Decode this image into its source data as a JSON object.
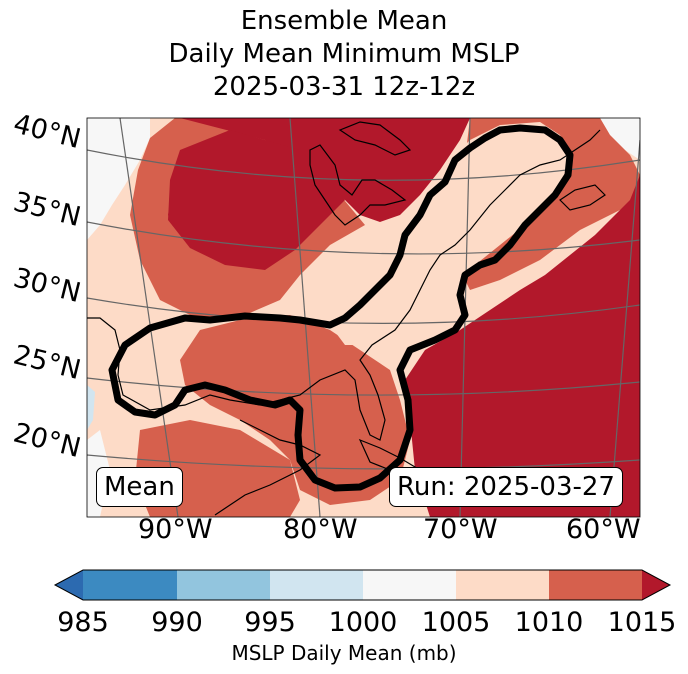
{
  "title": {
    "line1": "Ensemble Mean",
    "line2": "Daily Mean Minimum MSLP",
    "line3": "2025-03-31 12z-12z"
  },
  "map": {
    "lat_labels": [
      "40°N",
      "35°N",
      "30°N",
      "25°N",
      "20°N"
    ],
    "lon_labels": [
      "90°W",
      "80°W",
      "70°W",
      "60°W"
    ],
    "mean_label": "Mean",
    "run_label": "Run: 2025-03-27"
  },
  "colorbar": {
    "ticks": [
      "985",
      "990",
      "995",
      "1000",
      "1005",
      "1010",
      "1015"
    ],
    "label": "MSLP Daily Mean (mb)",
    "colors": [
      "#2c6ab0",
      "#3c8ac1",
      "#92c5de",
      "#d1e5f0",
      "#f7f7f7",
      "#fddbc7",
      "#d6604d",
      "#b2182b"
    ]
  },
  "palette": {
    "c1000": "#f7f7f7",
    "c1005": "#fddbc7",
    "c1010": "#d6604d",
    "c1015": "#b2182b",
    "c995": "#d1e5f0"
  }
}
